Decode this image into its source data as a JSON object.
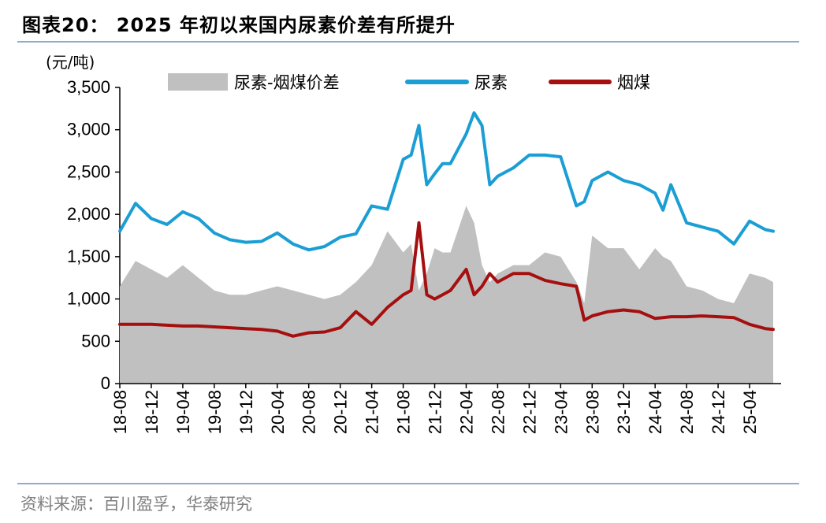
{
  "header": {
    "title": "图表20：  2025 年初以来国内尿素价差有所提升"
  },
  "footer": {
    "source": "资料来源：百川盈孚，华泰研究"
  },
  "colors": {
    "spread": "#c0c0c0",
    "urea": "#1a9ed4",
    "coal": "#a50f0f",
    "rule": "#8eaccb"
  },
  "chart_data": {
    "type": "line",
    "ylabel": "(元/吨)",
    "ylim": [
      0,
      3500
    ],
    "yticks": [
      0,
      500,
      1000,
      1500,
      2000,
      2500,
      3000,
      3500
    ],
    "ytick_labels": [
      "0",
      "500",
      "1,000",
      "1,500",
      "2,000",
      "2,500",
      "3,000",
      "3,500"
    ],
    "xlim": [
      "2018-08",
      "2025-08"
    ],
    "xtick_labels": [
      "18-08",
      "18-12",
      "19-04",
      "19-08",
      "19-12",
      "20-04",
      "20-08",
      "20-12",
      "21-04",
      "21-08",
      "21-12",
      "22-04",
      "22-08",
      "22-12",
      "23-04",
      "23-08",
      "23-12",
      "24-04",
      "24-08",
      "24-12",
      "25-04"
    ],
    "legend_position": "top",
    "legend": [
      "尿素-烟煤价差",
      "尿素",
      "烟煤"
    ],
    "x": [
      "2018-08",
      "2018-10",
      "2018-12",
      "2019-02",
      "2019-04",
      "2019-06",
      "2019-08",
      "2019-10",
      "2019-12",
      "2020-02",
      "2020-04",
      "2020-06",
      "2020-08",
      "2020-10",
      "2020-12",
      "2021-02",
      "2021-04",
      "2021-06",
      "2021-08",
      "2021-09",
      "2021-10",
      "2021-11",
      "2021-12",
      "2022-01",
      "2022-02",
      "2022-04",
      "2022-05",
      "2022-06",
      "2022-07",
      "2022-08",
      "2022-10",
      "2022-12",
      "2023-02",
      "2023-04",
      "2023-06",
      "2023-07",
      "2023-08",
      "2023-10",
      "2023-12",
      "2024-02",
      "2024-04",
      "2024-05",
      "2024-06",
      "2024-08",
      "2024-10",
      "2024-12",
      "2025-02",
      "2025-04",
      "2025-06",
      "2025-07"
    ],
    "series": [
      {
        "name": "尿素-烟煤价差",
        "kind": "area",
        "values": [
          1150,
          1450,
          1350,
          1250,
          1400,
          1250,
          1100,
          1050,
          1050,
          1100,
          1150,
          1100,
          1050,
          1000,
          1050,
          1200,
          1400,
          1800,
          1550,
          1650,
          1100,
          1300,
          1600,
          1550,
          1550,
          2100,
          1900,
          1400,
          1200,
          1300,
          1400,
          1400,
          1550,
          1500,
          1200,
          950,
          1750,
          1600,
          1600,
          1350,
          1600,
          1500,
          1450,
          1150,
          1100,
          1000,
          950,
          1300,
          1250,
          1200
        ]
      },
      {
        "name": "尿素",
        "kind": "line",
        "values": [
          1800,
          2130,
          1950,
          1880,
          2030,
          1950,
          1780,
          1700,
          1670,
          1680,
          1780,
          1650,
          1580,
          1620,
          1730,
          1770,
          2100,
          2060,
          2650,
          2700,
          3050,
          2350,
          2480,
          2600,
          2600,
          2950,
          3200,
          3050,
          2350,
          2450,
          2550,
          2700,
          2700,
          2680,
          2100,
          2150,
          2400,
          2500,
          2400,
          2350,
          2250,
          2050,
          2350,
          1900,
          1850,
          1800,
          1650,
          1920,
          1820,
          1800
        ]
      },
      {
        "name": "烟煤",
        "kind": "line",
        "values": [
          700,
          700,
          700,
          690,
          680,
          680,
          670,
          660,
          650,
          640,
          620,
          560,
          600,
          610,
          660,
          850,
          700,
          900,
          1050,
          1100,
          1900,
          1050,
          1000,
          1050,
          1100,
          1350,
          1050,
          1150,
          1300,
          1200,
          1300,
          1300,
          1220,
          1180,
          1150,
          750,
          800,
          850,
          870,
          850,
          770,
          780,
          790,
          790,
          800,
          790,
          780,
          700,
          650,
          640
        ]
      }
    ]
  }
}
